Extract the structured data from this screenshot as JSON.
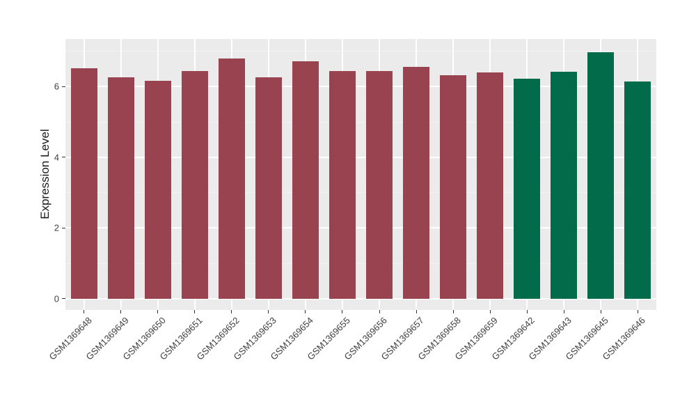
{
  "chart_data": {
    "type": "bar",
    "title": "",
    "xlabel": "",
    "ylabel": "Expression Level",
    "categories": [
      "GSM1369648",
      "GSM1369649",
      "GSM1369650",
      "GSM1369651",
      "GSM1369652",
      "GSM1369653",
      "GSM1369654",
      "GSM1369655",
      "GSM1369656",
      "GSM1369657",
      "GSM1369658",
      "GSM1369659",
      "GSM1369642",
      "GSM1369643",
      "GSM1369645",
      "GSM1369646"
    ],
    "series": [
      {
        "name": "Expression Level",
        "values": [
          6.53,
          6.26,
          6.16,
          6.45,
          6.79,
          6.26,
          6.71,
          6.45,
          6.44,
          6.56,
          6.32,
          6.41,
          6.22,
          6.43,
          6.98,
          6.14
        ]
      }
    ],
    "groups": [
      "group1",
      "group1",
      "group1",
      "group1",
      "group1",
      "group1",
      "group1",
      "group1",
      "group1",
      "group1",
      "group1",
      "group1",
      "group2",
      "group2",
      "group2",
      "group2"
    ],
    "group_colors": {
      "group1": "#9A4350",
      "group2": "#026B4A"
    },
    "y_ticks_major": [
      0,
      2,
      4,
      6
    ],
    "y_ticks_minor": [
      1,
      3,
      5,
      7
    ],
    "ylim": [
      -0.32,
      7.35
    ],
    "grid": true,
    "legend_position": "none",
    "panel_bg": "#EBEBEB",
    "grid_color_major": "#FFFFFF",
    "grid_color_minor": "#F7F7F7",
    "tick_color": "#333333",
    "axis_text_color": "#404040",
    "axis_title_color": "#1A1A1A"
  }
}
